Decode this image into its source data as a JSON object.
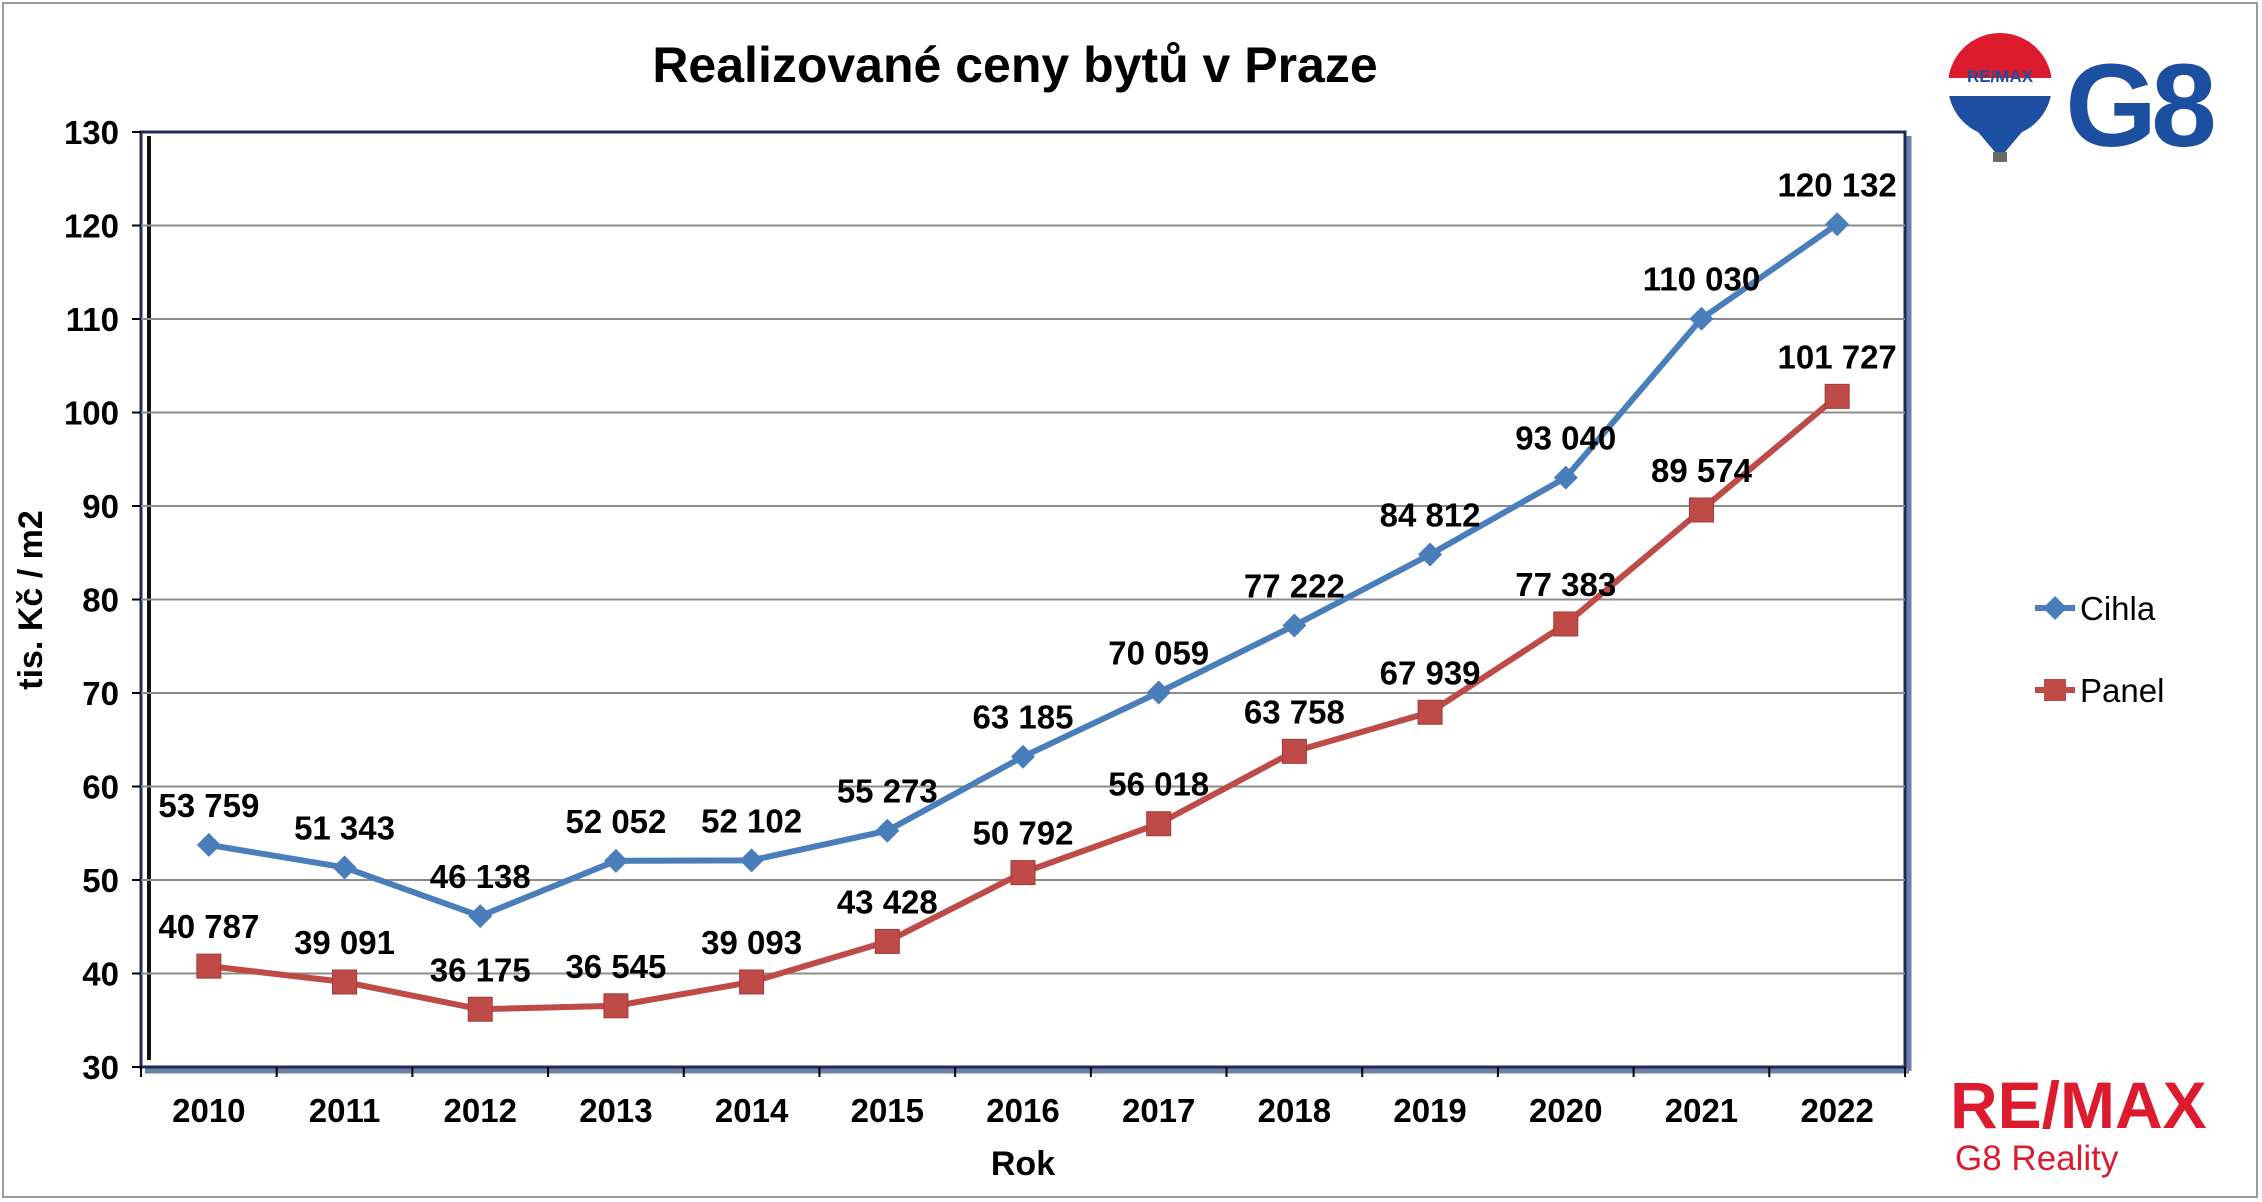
{
  "chart_data": {
    "type": "line",
    "title": "Realizované ceny bytů v Praze",
    "xlabel": "Rok",
    "ylabel": "tis. Kč / m2",
    "ylim": [
      30,
      130
    ],
    "yticks": [
      30,
      40,
      50,
      60,
      70,
      80,
      90,
      100,
      110,
      120,
      130
    ],
    "categories": [
      "2010",
      "2011",
      "2012",
      "2013",
      "2014",
      "2015",
      "2016",
      "2017",
      "2018",
      "2019",
      "2020",
      "2021",
      "2022"
    ],
    "grid": true,
    "legend_position": "right",
    "series": [
      {
        "name": "Cihla",
        "color": "#4a7ebb",
        "marker": "diamond",
        "values": [
          53.759,
          51.343,
          46.138,
          52.052,
          52.102,
          55.273,
          63.185,
          70.059,
          77.222,
          84.812,
          93.04,
          110.03,
          120.132
        ],
        "labels": [
          "53 759",
          "51 343",
          "46 138",
          "52 052",
          "52 102",
          "55 273",
          "63 185",
          "70 059",
          "77 222",
          "84 812",
          "93 040",
          "110 030",
          "120 132"
        ]
      },
      {
        "name": "Panel",
        "color": "#be4b48",
        "marker": "square",
        "values": [
          40.787,
          39.091,
          36.175,
          36.545,
          39.093,
          43.428,
          50.792,
          56.018,
          63.758,
          67.939,
          77.383,
          89.574,
          101.727
        ],
        "labels": [
          "40 787",
          "39 091",
          "36 175",
          "36 545",
          "39 093",
          "43 428",
          "50 792",
          "56 018",
          "63 758",
          "67 939",
          "77 383",
          "89 574",
          "101 727"
        ]
      }
    ]
  },
  "branding": {
    "logo_top_text": "G8",
    "balloon_text": "RE/MAX",
    "logo_bottom_main": "RE/MAX",
    "logo_bottom_sub": "G8 Reality",
    "brand_red": "#dc1c2e",
    "brand_blue": "#1c4fa0"
  }
}
